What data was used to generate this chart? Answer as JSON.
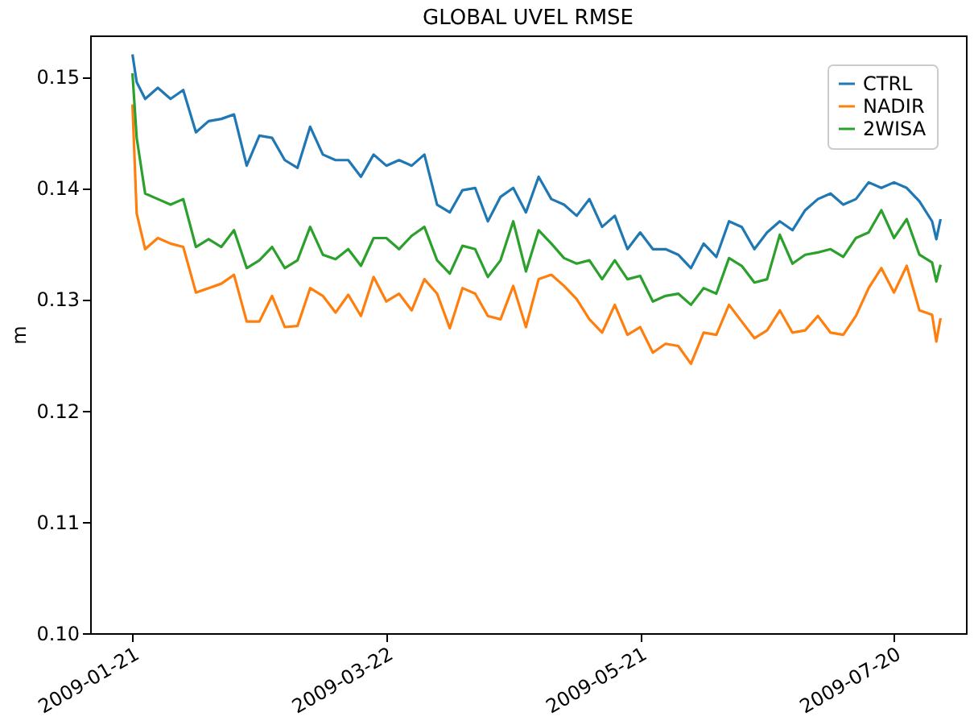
{
  "chart_data": {
    "type": "line",
    "title": "GLOBAL UVEL RMSE",
    "ylabel": "m",
    "x": [
      "2009-01-21",
      "2009-01-22",
      "2009-01-24",
      "2009-01-27",
      "2009-01-30",
      "2009-02-02",
      "2009-02-05",
      "2009-02-08",
      "2009-02-11",
      "2009-02-14",
      "2009-02-17",
      "2009-02-20",
      "2009-02-23",
      "2009-02-26",
      "2009-03-01",
      "2009-03-04",
      "2009-03-07",
      "2009-03-10",
      "2009-03-13",
      "2009-03-16",
      "2009-03-19",
      "2009-03-22",
      "2009-03-25",
      "2009-03-28",
      "2009-03-31",
      "2009-04-03",
      "2009-04-06",
      "2009-04-09",
      "2009-04-12",
      "2009-04-15",
      "2009-04-18",
      "2009-04-21",
      "2009-04-24",
      "2009-04-27",
      "2009-04-30",
      "2009-05-03",
      "2009-05-06",
      "2009-05-09",
      "2009-05-12",
      "2009-05-15",
      "2009-05-18",
      "2009-05-21",
      "2009-05-24",
      "2009-05-27",
      "2009-05-30",
      "2009-06-02",
      "2009-06-05",
      "2009-06-08",
      "2009-06-11",
      "2009-06-14",
      "2009-06-17",
      "2009-06-20",
      "2009-06-23",
      "2009-06-26",
      "2009-06-29",
      "2009-07-02",
      "2009-07-05",
      "2009-07-08",
      "2009-07-11",
      "2009-07-14",
      "2009-07-17",
      "2009-07-20",
      "2009-07-23",
      "2009-07-26",
      "2009-07-29",
      "2009-07-30",
      "2009-07-31"
    ],
    "series": [
      {
        "name": "CTRL",
        "color": "#1f77b4",
        "values": [
          0.152,
          0.1495,
          0.148,
          0.149,
          0.148,
          0.1488,
          0.145,
          0.146,
          0.1462,
          0.1466,
          0.142,
          0.1447,
          0.1445,
          0.1425,
          0.1418,
          0.1455,
          0.143,
          0.1425,
          0.1425,
          0.141,
          0.143,
          0.142,
          0.1425,
          0.142,
          0.143,
          0.1385,
          0.1378,
          0.1398,
          0.14,
          0.137,
          0.1392,
          0.14,
          0.1378,
          0.141,
          0.139,
          0.1385,
          0.1375,
          0.139,
          0.1365,
          0.1375,
          0.1345,
          0.136,
          0.1345,
          0.1345,
          0.134,
          0.1328,
          0.135,
          0.1338,
          0.137,
          0.1365,
          0.1345,
          0.136,
          0.137,
          0.1362,
          0.138,
          0.139,
          0.1395,
          0.1385,
          0.139,
          0.1405,
          0.14,
          0.1405,
          0.14,
          0.1388,
          0.137,
          0.1354,
          0.1372
        ]
      },
      {
        "name": "NADIR",
        "color": "#ff7f0e",
        "values": [
          0.1475,
          0.1377,
          0.1345,
          0.1355,
          0.135,
          0.1347,
          0.1306,
          0.131,
          0.1314,
          0.1322,
          0.128,
          0.128,
          0.1303,
          0.1275,
          0.1276,
          0.131,
          0.1303,
          0.1288,
          0.1304,
          0.1285,
          0.132,
          0.1298,
          0.1305,
          0.129,
          0.1318,
          0.1305,
          0.1274,
          0.131,
          0.1305,
          0.1285,
          0.1282,
          0.1312,
          0.1275,
          0.1318,
          0.1322,
          0.1312,
          0.13,
          0.1282,
          0.127,
          0.1295,
          0.1268,
          0.1275,
          0.1252,
          0.126,
          0.1258,
          0.1242,
          0.127,
          0.1268,
          0.1295,
          0.128,
          0.1265,
          0.1272,
          0.129,
          0.127,
          0.1272,
          0.1285,
          0.127,
          0.1268,
          0.1285,
          0.131,
          0.1328,
          0.1306,
          0.133,
          0.129,
          0.1286,
          0.1262,
          0.1283
        ]
      },
      {
        "name": "2WISA",
        "color": "#2ca02c",
        "values": [
          0.1503,
          0.1445,
          0.1395,
          0.139,
          0.1385,
          0.139,
          0.1347,
          0.1354,
          0.1347,
          0.1362,
          0.1328,
          0.1335,
          0.1347,
          0.1328,
          0.1335,
          0.1365,
          0.134,
          0.1336,
          0.1345,
          0.133,
          0.1355,
          0.1355,
          0.1345,
          0.1357,
          0.1365,
          0.1335,
          0.1323,
          0.1348,
          0.1345,
          0.132,
          0.1335,
          0.137,
          0.1325,
          0.1362,
          0.135,
          0.1337,
          0.1332,
          0.1335,
          0.1318,
          0.1335,
          0.1318,
          0.1321,
          0.1298,
          0.1303,
          0.1305,
          0.1295,
          0.131,
          0.1305,
          0.1337,
          0.133,
          0.1315,
          0.1318,
          0.1358,
          0.1332,
          0.134,
          0.1342,
          0.1345,
          0.1338,
          0.1355,
          0.136,
          0.138,
          0.1355,
          0.1372,
          0.134,
          0.1333,
          0.1316,
          0.1331
        ]
      }
    ],
    "xlim": [
      "2009-01-11",
      "2009-08-06"
    ],
    "xticks": [
      "2009-01-21",
      "2009-03-22",
      "2009-05-21",
      "2009-07-20"
    ],
    "ylim": [
      0.1,
      0.1537
    ],
    "yticks": [
      {
        "value": 0.1,
        "label": "0.10"
      },
      {
        "value": 0.11,
        "label": "0.11"
      },
      {
        "value": 0.12,
        "label": "0.12"
      },
      {
        "value": 0.13,
        "label": "0.13"
      },
      {
        "value": 0.14,
        "label": "0.14"
      },
      {
        "value": 0.15,
        "label": "0.15"
      }
    ],
    "legend": "top right",
    "grid": false,
    "marker": "none",
    "line_style": "solid"
  }
}
